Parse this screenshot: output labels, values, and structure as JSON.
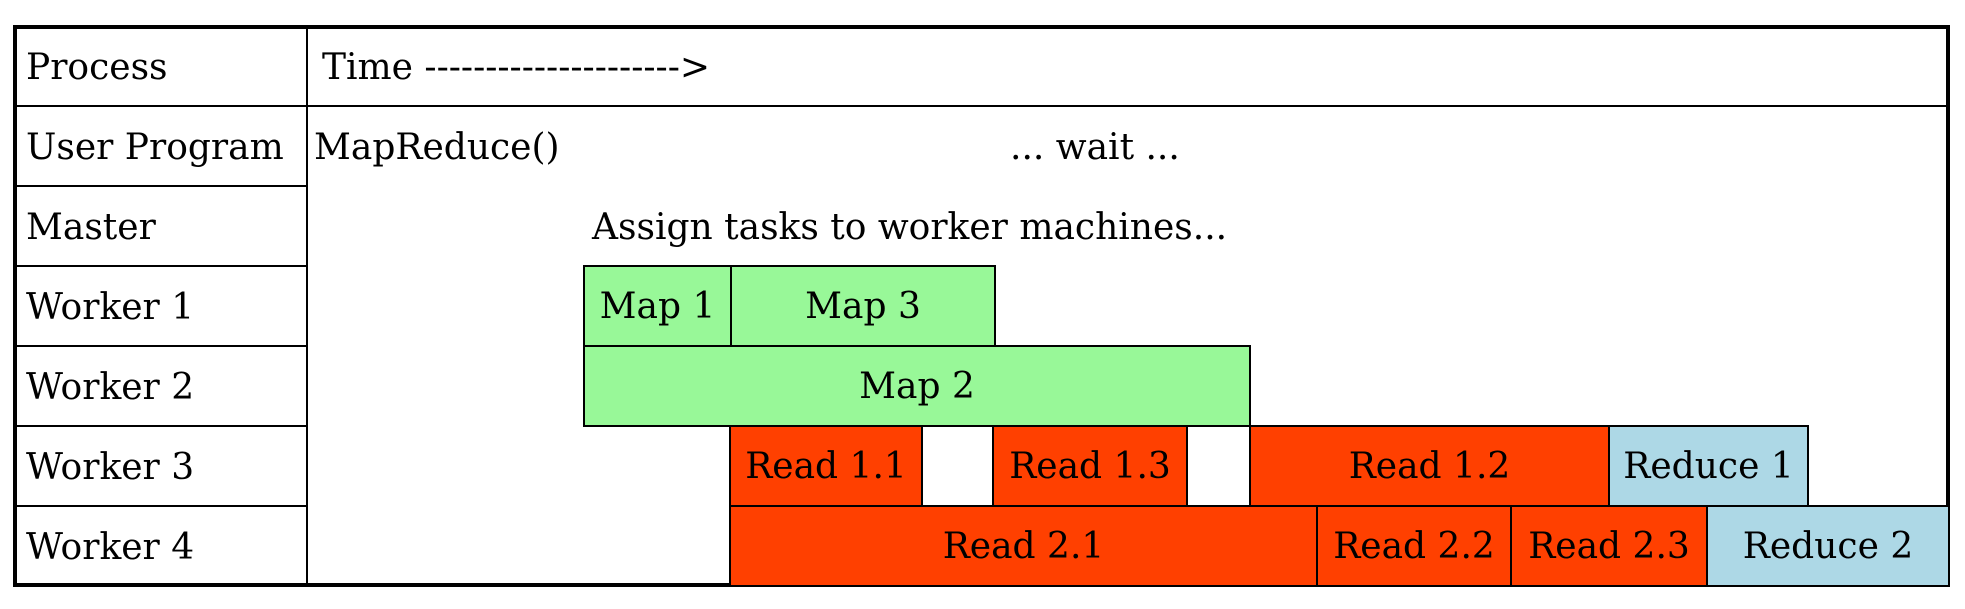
{
  "header": {
    "process": "Process",
    "time": "Time --------------------->"
  },
  "rows": {
    "user_program": {
      "label": "User Program",
      "call": "MapReduce()",
      "wait": "... wait ..."
    },
    "master": {
      "label": "Master",
      "text": "Assign tasks to worker machines..."
    },
    "worker1": {
      "label": "Worker 1",
      "tasks": [
        "Map 1",
        "Map 3"
      ]
    },
    "worker2": {
      "label": "Worker 2",
      "tasks": [
        "Map 2"
      ]
    },
    "worker3": {
      "label": "Worker 3",
      "tasks": [
        "Read 1.1",
        "Read 1.3",
        "Read 1.2",
        "Reduce 1"
      ]
    },
    "worker4": {
      "label": "Worker 4",
      "tasks": [
        "Read 2.1",
        "Read 2.2",
        "Read 2.3",
        "Reduce 2"
      ]
    }
  },
  "colors": {
    "map": "#98f898",
    "read": "#ff4000",
    "reduce": "#add8e6"
  }
}
